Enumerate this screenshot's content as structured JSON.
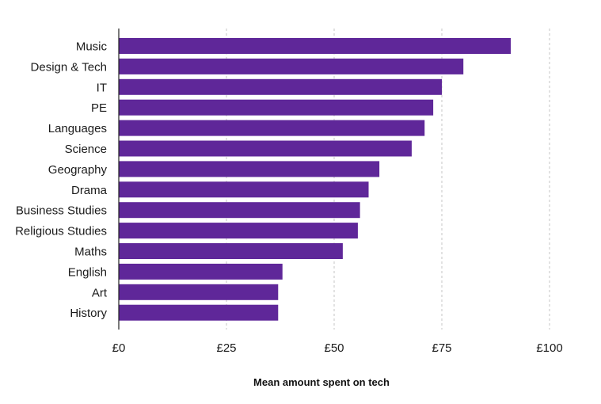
{
  "chart_data": {
    "type": "bar",
    "orientation": "horizontal",
    "title": "",
    "xlabel": "Mean amount spent on tech",
    "ylabel": "",
    "categories": [
      "Music",
      "Design & Tech",
      "IT",
      "PE",
      "Languages",
      "Science",
      "Geography",
      "Drama",
      "Business Studies",
      "Religious Studies",
      "Maths",
      "English",
      "Art",
      "History"
    ],
    "values": [
      91,
      80,
      75,
      73,
      71,
      68,
      60.5,
      58,
      56,
      55.5,
      52,
      38,
      37,
      37
    ],
    "xlim": [
      0,
      100
    ],
    "xticks": [
      0,
      25,
      50,
      75,
      100
    ],
    "xtick_labels": [
      "£0",
      "£25",
      "£50",
      "£75",
      "£100"
    ],
    "grid": "vertical dashed",
    "legend": "none",
    "colors": {
      "bar": "#5f2799",
      "grid": "#c4c4c4",
      "axis": "#222222",
      "text": "#1b1b1b"
    }
  }
}
